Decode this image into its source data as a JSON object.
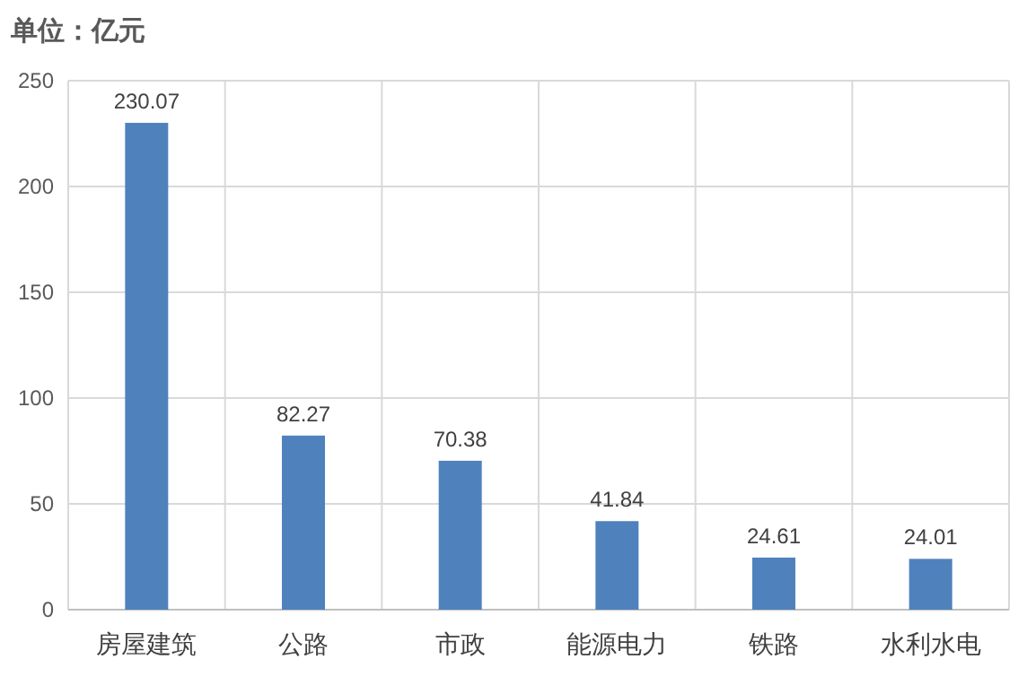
{
  "chart_data": {
    "type": "bar",
    "title": "单位：亿元",
    "categories": [
      "房屋建筑",
      "公路",
      "市政",
      "能源电力",
      "铁路",
      "水利水电"
    ],
    "values": [
      230.07,
      82.27,
      70.38,
      41.84,
      24.61,
      24.01
    ],
    "color": "#4f81bd",
    "ylim": [
      0,
      250
    ],
    "yticks": [
      0,
      50,
      100,
      150,
      200,
      250
    ],
    "grid": true,
    "data_labels": true
  }
}
